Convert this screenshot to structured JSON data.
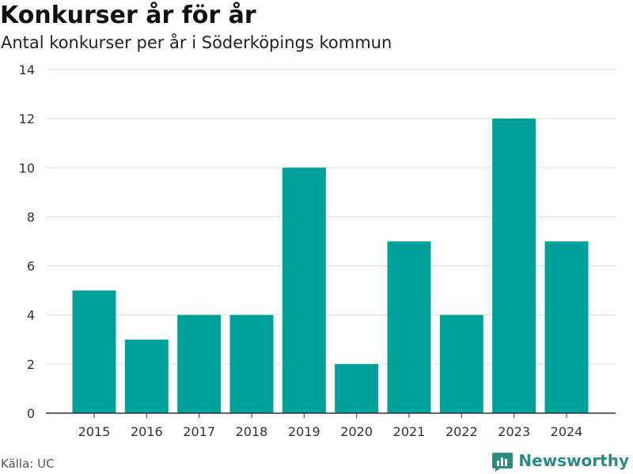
{
  "title": "Konkurser år för år",
  "subtitle": "Antal konkurser per år i Söderköpings kommun",
  "source": "Källa: UC",
  "brand": {
    "name": "Newsworthy",
    "icon": "bar-chart-logo-icon",
    "color": "#2a8c83"
  },
  "colors": {
    "bar": "#00a19a",
    "grid": "#dddddd",
    "axis": "#333333"
  },
  "chart_data": {
    "type": "bar",
    "categories": [
      "2015",
      "2016",
      "2017",
      "2018",
      "2019",
      "2020",
      "2021",
      "2022",
      "2023",
      "2024"
    ],
    "values": [
      5,
      3,
      4,
      4,
      10,
      2,
      7,
      4,
      12,
      7
    ],
    "ylim": [
      0,
      14
    ],
    "yticks": [
      0,
      2,
      4,
      6,
      8,
      10,
      12,
      14
    ],
    "grid": true,
    "legend": "none"
  }
}
